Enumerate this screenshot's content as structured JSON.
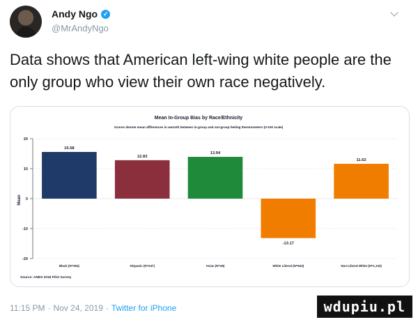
{
  "author": {
    "name": "Andy Ngo",
    "handle": "@MrAndyNgo",
    "verified_glyph": "✓"
  },
  "tweet": {
    "text": "Data shows that American left-wing white people are the only group who view their own race negatively."
  },
  "meta": {
    "time": "11:15 PM",
    "date": "Nov 24, 2019",
    "client": "Twitter for iPhone",
    "separator": "·"
  },
  "watermark": "wdupiu.pl",
  "colors": {
    "navy": "#1f3a68",
    "maroon": "#8b2f3c",
    "green": "#1e8a3a",
    "orange": "#f07d00",
    "link": "#1da1f2"
  },
  "icons": {
    "verified": "verified-badge-icon",
    "caret": "chevron-down-icon"
  },
  "chart_data": {
    "type": "bar",
    "title": "Mean In-Group Bias by Race/Ethnicity",
    "subtitle": "Scores denote mean differences in warmth between in-group and out-group feeling thermometers (0-100 scale)",
    "ylabel": "Mean",
    "source": "Source: ANES 2018 Pilot Survey",
    "ylim": [
      -20,
      20
    ],
    "yticks": [
      "20",
      "10",
      "0",
      "-10",
      "-20"
    ],
    "categories": [
      "Black (N=254)",
      "Hispanic (N=247)",
      "Asian (N=46)",
      "White Liberal (N=543)",
      "Non-Liberal White (N=1,133)"
    ],
    "values": [
      15.58,
      12.83,
      13.94,
      -13.17,
      11.62
    ],
    "value_labels": [
      "15.58",
      "12.83",
      "13.94",
      "-13.17",
      "11.62"
    ],
    "bar_colors": [
      "#1f3a68",
      "#8b2f3c",
      "#1e8a3a",
      "#f07d00",
      "#f07d00"
    ],
    "grid": true,
    "legend": "none"
  }
}
